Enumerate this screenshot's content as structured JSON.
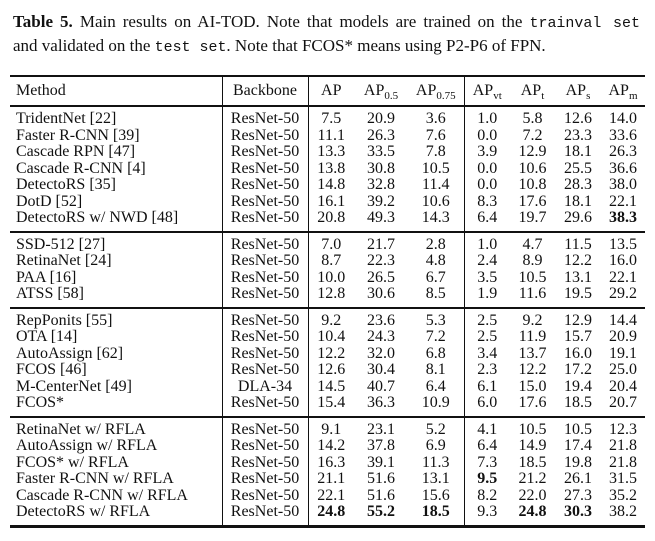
{
  "caption": {
    "line1": {
      "label": "Table 5.",
      "text": " Main results on AI-TOD. Note that models are trained on the ",
      "mono": "trainval set"
    },
    "line2": {
      "pre": "and validated on the ",
      "mono": "test set",
      "post": ". Note that FCOS* means using P2-P6 of FPN."
    }
  },
  "table": {
    "columns": {
      "method": "Method",
      "backbone": "Backbone",
      "metrics": [
        {
          "base": "AP",
          "sub": ""
        },
        {
          "base": "AP",
          "sub": "0.5"
        },
        {
          "base": "AP",
          "sub": "0.75"
        },
        {
          "base": "AP",
          "sub": "vt"
        },
        {
          "base": "AP",
          "sub": "t"
        },
        {
          "base": "AP",
          "sub": "s"
        },
        {
          "base": "AP",
          "sub": "m"
        }
      ]
    },
    "groups": [
      {
        "rows": [
          {
            "method": "TridentNet [22]",
            "backbone": "ResNet-50",
            "values": [
              "7.5",
              "20.9",
              "3.6",
              "1.0",
              "5.8",
              "12.6",
              "14.0"
            ],
            "bold": []
          },
          {
            "method": "Faster R-CNN [39]",
            "backbone": "ResNet-50",
            "values": [
              "11.1",
              "26.3",
              "7.6",
              "0.0",
              "7.2",
              "23.3",
              "33.6"
            ],
            "bold": []
          },
          {
            "method": "Cascade RPN [47]",
            "backbone": "ResNet-50",
            "values": [
              "13.3",
              "33.5",
              "7.8",
              "3.9",
              "12.9",
              "18.1",
              "26.3"
            ],
            "bold": []
          },
          {
            "method": "Cascade R-CNN [4]",
            "backbone": "ResNet-50",
            "values": [
              "13.8",
              "30.8",
              "10.5",
              "0.0",
              "10.6",
              "25.5",
              "36.6"
            ],
            "bold": []
          },
          {
            "method": "DetectoRS [35]",
            "backbone": "ResNet-50",
            "values": [
              "14.8",
              "32.8",
              "11.4",
              "0.0",
              "10.8",
              "28.3",
              "38.0"
            ],
            "bold": []
          },
          {
            "method": "DotD [52]",
            "backbone": "ResNet-50",
            "values": [
              "16.1",
              "39.2",
              "10.6",
              "8.3",
              "17.6",
              "18.1",
              "22.1"
            ],
            "bold": []
          },
          {
            "method": "DetectoRS w/ NWD [48]",
            "backbone": "ResNet-50",
            "values": [
              "20.8",
              "49.3",
              "14.3",
              "6.4",
              "19.7",
              "29.6",
              "38.3"
            ],
            "bold": [
              6
            ]
          }
        ]
      },
      {
        "rows": [
          {
            "method": "SSD-512 [27]",
            "backbone": "ResNet-50",
            "values": [
              "7.0",
              "21.7",
              "2.8",
              "1.0",
              "4.7",
              "11.5",
              "13.5"
            ],
            "bold": []
          },
          {
            "method": "RetinaNet [24]",
            "backbone": "ResNet-50",
            "values": [
              "8.7",
              "22.3",
              "4.8",
              "2.4",
              "8.9",
              "12.2",
              "16.0"
            ],
            "bold": []
          },
          {
            "method": "PAA [16]",
            "backbone": "ResNet-50",
            "values": [
              "10.0",
              "26.5",
              "6.7",
              "3.5",
              "10.5",
              "13.1",
              "22.1"
            ],
            "bold": []
          },
          {
            "method": "ATSS [58]",
            "backbone": "ResNet-50",
            "values": [
              "12.8",
              "30.6",
              "8.5",
              "1.9",
              "11.6",
              "19.5",
              "29.2"
            ],
            "bold": []
          }
        ]
      },
      {
        "rows": [
          {
            "method": "RepPonits [55]",
            "backbone": "ResNet-50",
            "values": [
              "9.2",
              "23.6",
              "5.3",
              "2.5",
              "9.2",
              "12.9",
              "14.4"
            ],
            "bold": []
          },
          {
            "method": "OTA [14]",
            "backbone": "ResNet-50",
            "values": [
              "10.4",
              "24.3",
              "7.2",
              "2.5",
              "11.9",
              "15.7",
              "20.9"
            ],
            "bold": []
          },
          {
            "method": "AutoAssign [62]",
            "backbone": "ResNet-50",
            "values": [
              "12.2",
              "32.0",
              "6.8",
              "3.4",
              "13.7",
              "16.0",
              "19.1"
            ],
            "bold": []
          },
          {
            "method": "FCOS [46]",
            "backbone": "ResNet-50",
            "values": [
              "12.6",
              "30.4",
              "8.1",
              "2.3",
              "12.2",
              "17.2",
              "25.0"
            ],
            "bold": []
          },
          {
            "method": "M-CenterNet [49]",
            "backbone": "DLA-34",
            "values": [
              "14.5",
              "40.7",
              "6.4",
              "6.1",
              "15.0",
              "19.4",
              "20.4"
            ],
            "bold": []
          },
          {
            "method": "FCOS*",
            "backbone": "ResNet-50",
            "values": [
              "15.4",
              "36.3",
              "10.9",
              "6.0",
              "17.6",
              "18.5",
              "20.7"
            ],
            "bold": []
          }
        ]
      },
      {
        "rows": [
          {
            "method": "RetinaNet w/ RFLA",
            "backbone": "ResNet-50",
            "values": [
              "9.1",
              "23.1",
              "5.2",
              "4.1",
              "10.5",
              "10.5",
              "12.3"
            ],
            "bold": []
          },
          {
            "method": "AutoAssign w/ RFLA",
            "backbone": "ResNet-50",
            "values": [
              "14.2",
              "37.8",
              "6.9",
              "6.4",
              "14.9",
              "17.4",
              "21.8"
            ],
            "bold": []
          },
          {
            "method": "FCOS* w/ RFLA",
            "backbone": "ResNet-50",
            "values": [
              "16.3",
              "39.1",
              "11.3",
              "7.3",
              "18.5",
              "19.8",
              "21.8"
            ],
            "bold": []
          },
          {
            "method": "Faster R-CNN w/ RFLA",
            "backbone": "ResNet-50",
            "values": [
              "21.1",
              "51.6",
              "13.1",
              "9.5",
              "21.2",
              "26.1",
              "31.5"
            ],
            "bold": [
              3
            ]
          },
          {
            "method": "Cascade R-CNN w/ RFLA",
            "backbone": "ResNet-50",
            "values": [
              "22.1",
              "51.6",
              "15.6",
              "8.2",
              "22.0",
              "27.3",
              "35.2"
            ],
            "bold": []
          },
          {
            "method": "DetectoRS w/ RFLA",
            "backbone": "ResNet-50",
            "values": [
              "24.8",
              "55.2",
              "18.5",
              "9.3",
              "24.8",
              "30.3",
              "38.2"
            ],
            "bold": [
              0,
              1,
              2,
              4,
              5
            ]
          }
        ]
      }
    ]
  }
}
